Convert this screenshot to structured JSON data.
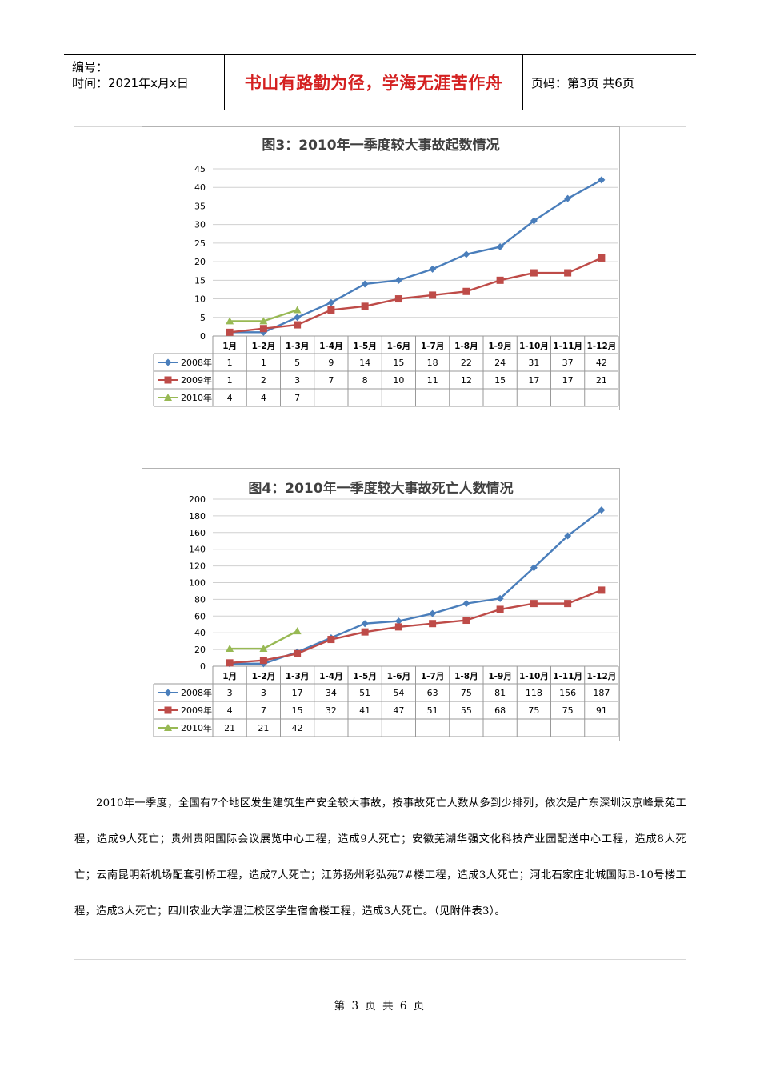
{
  "header": {
    "serial_label": "编号：",
    "time_label": "时间：2021年x月x日",
    "motto": "书山有路勤为径，学海无涯苦作舟",
    "page_label": "页码：第3页  共6页"
  },
  "charts": [
    {
      "type": "line",
      "title": "图3：2010年一季度较大事故起数情况",
      "categories": [
        "1月",
        "1-2月",
        "1-3月",
        "1-4月",
        "1-5月",
        "1-6月",
        "1-7月",
        "1-8月",
        "1-9月",
        "1-10月",
        "1-11月",
        "1-12月"
      ],
      "ylim": [
        0,
        45
      ],
      "yticks": [
        0,
        5,
        10,
        15,
        20,
        25,
        30,
        35,
        40,
        45
      ],
      "series": [
        {
          "name": "2008年",
          "marker": "diamond",
          "color": "#4a7ebb",
          "values": [
            1,
            1,
            5,
            9,
            14,
            15,
            18,
            22,
            24,
            31,
            37,
            42
          ]
        },
        {
          "name": "2009年",
          "marker": "square",
          "color": "#be4b48",
          "values": [
            1,
            2,
            3,
            7,
            8,
            10,
            11,
            12,
            15,
            17,
            17,
            21
          ]
        },
        {
          "name": "2010年",
          "marker": "triangle",
          "color": "#98b954",
          "values": [
            4,
            4,
            7
          ]
        }
      ]
    },
    {
      "type": "line",
      "title": "图4：2010年一季度较大事故死亡人数情况",
      "categories": [
        "1月",
        "1-2月",
        "1-3月",
        "1-4月",
        "1-5月",
        "1-6月",
        "1-7月",
        "1-8月",
        "1-9月",
        "1-10月",
        "1-11月",
        "1-12月"
      ],
      "ylim": [
        0,
        200
      ],
      "yticks": [
        0,
        20,
        40,
        60,
        80,
        100,
        120,
        140,
        160,
        180,
        200
      ],
      "series": [
        {
          "name": "2008年",
          "marker": "diamond",
          "color": "#4a7ebb",
          "values": [
            3,
            3,
            17,
            34,
            51,
            54,
            63,
            75,
            81,
            118,
            156,
            187
          ]
        },
        {
          "name": "2009年",
          "marker": "square",
          "color": "#be4b48",
          "values": [
            4,
            7,
            15,
            32,
            41,
            47,
            51,
            55,
            68,
            75,
            75,
            91
          ]
        },
        {
          "name": "2010年",
          "marker": "triangle",
          "color": "#98b954",
          "values": [
            21,
            21,
            42
          ]
        }
      ]
    }
  ],
  "body": {
    "paragraph": "2010年一季度，全国有7个地区发生建筑生产安全较大事故，按事故死亡人数从多到少排列，依次是广东深圳汉京峰景苑工程，造成9人死亡；贵州贵阳国际会议展览中心工程，造成9人死亡；安徽芜湖华强文化科技产业园配送中心工程，造成8人死亡；云南昆明新机场配套引桥工程，造成7人死亡；江苏扬州彩弘苑7#楼工程，造成3人死亡；河北石家庄北城国际B-10号楼工程，造成3人死亡；四川农业大学温江校区学生宿舍楼工程，造成3人死亡。（见附件表3）。"
  },
  "footer": {
    "page_text": "第 3 页 共 6 页"
  }
}
